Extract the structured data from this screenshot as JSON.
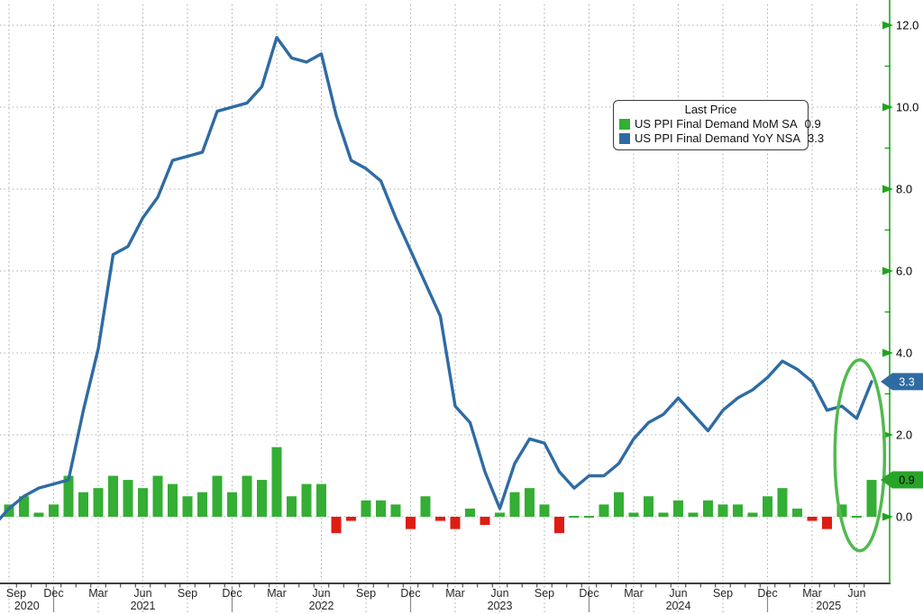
{
  "chart_data": {
    "type": "combo",
    "title": "US PPI Final Demand",
    "grid": true,
    "months": [
      "2020-09",
      "2020-10",
      "2020-11",
      "2020-12",
      "2021-01",
      "2021-02",
      "2021-03",
      "2021-04",
      "2021-05",
      "2021-06",
      "2021-07",
      "2021-08",
      "2021-09",
      "2021-10",
      "2021-11",
      "2021-12",
      "2022-01",
      "2022-02",
      "2022-03",
      "2022-04",
      "2022-05",
      "2022-06",
      "2022-07",
      "2022-08",
      "2022-09",
      "2022-10",
      "2022-11",
      "2022-12",
      "2023-01",
      "2023-02",
      "2023-03",
      "2023-04",
      "2023-05",
      "2023-06",
      "2023-07",
      "2023-08",
      "2023-09",
      "2023-10",
      "2023-11",
      "2023-12",
      "2024-01",
      "2024-02",
      "2024-03",
      "2024-04",
      "2024-05",
      "2024-06",
      "2024-07",
      "2024-08",
      "2024-09",
      "2024-10",
      "2024-11",
      "2024-12",
      "2025-01",
      "2025-02",
      "2025-03",
      "2025-04",
      "2025-05",
      "2025-06",
      "2025-07"
    ],
    "series": [
      {
        "name": "US PPI Final Demand MoM SA",
        "type": "bar",
        "last_value": 0.9,
        "color_positive": "#34ae34",
        "color_negative": "#e01c12",
        "values": [
          0.3,
          0.5,
          0.1,
          0.3,
          1.0,
          0.6,
          0.7,
          1.0,
          0.9,
          0.7,
          1.0,
          0.8,
          0.5,
          0.6,
          1.0,
          0.6,
          1.0,
          0.9,
          1.7,
          0.5,
          0.8,
          0.8,
          -0.4,
          -0.1,
          0.4,
          0.4,
          0.3,
          -0.3,
          0.5,
          -0.1,
          -0.3,
          0.2,
          -0.2,
          0.1,
          0.6,
          0.7,
          0.3,
          -0.4,
          0.0,
          0.0,
          0.3,
          0.6,
          0.1,
          0.5,
          0.1,
          0.4,
          0.1,
          0.4,
          0.3,
          0.3,
          0.1,
          0.5,
          0.7,
          0.2,
          -0.1,
          -0.3,
          0.3,
          0.0,
          0.9
        ]
      },
      {
        "name": "US PPI Final Demand YoY NSA",
        "type": "line",
        "last_value": 3.3,
        "color": "#2f6ba3",
        "lead_in": {
          "month": "2020-08",
          "value": -0.2
        },
        "values": [
          0.2,
          0.5,
          0.7,
          0.8,
          0.9,
          2.6,
          4.1,
          6.4,
          6.6,
          7.3,
          7.8,
          8.7,
          8.8,
          8.9,
          9.9,
          10.0,
          10.1,
          10.5,
          11.7,
          11.2,
          11.1,
          11.3,
          9.8,
          8.7,
          8.5,
          8.2,
          7.3,
          6.5,
          5.7,
          4.9,
          2.7,
          2.3,
          1.1,
          0.2,
          1.3,
          1.9,
          1.8,
          1.1,
          0.7,
          1.0,
          1.0,
          1.3,
          1.9,
          2.3,
          2.5,
          2.9,
          2.5,
          2.1,
          2.6,
          2.9,
          3.1,
          3.4,
          3.8,
          3.6,
          3.3,
          2.6,
          2.7,
          2.4,
          3.3
        ]
      }
    ],
    "y_axis": {
      "side": "right",
      "ylim": [
        -1.3,
        12.6
      ],
      "major_ticks": [
        0,
        2,
        4,
        6,
        8,
        10,
        12
      ],
      "major_tick_labels": [
        "0.0",
        "2.0",
        "4.0",
        "6.0",
        "8.0",
        "10.0",
        "12.0"
      ],
      "minor_ticks": [
        1,
        3,
        5,
        7,
        9,
        11
      ],
      "axis_color": "#1fa51f",
      "label_color": "#000000"
    },
    "x_axis": {
      "quarter_labels": [
        "Sep",
        "Dec",
        "Mar",
        "Jun",
        "Sep",
        "Dec",
        "Mar",
        "Jun",
        "Sep",
        "Dec",
        "Mar",
        "Jun",
        "Sep",
        "Dec",
        "Mar",
        "Jun",
        "Sep",
        "Dec",
        "Mar",
        "Jun"
      ],
      "year_labels": [
        "2020",
        "2021",
        "2022",
        "2023",
        "2024",
        "2025"
      ],
      "label_color": "#262626"
    },
    "legend": {
      "title": "Last Price",
      "items": [
        {
          "label": "US PPI Final Demand MoM SA",
          "value": "0.9",
          "swatch": "#34ae34"
        },
        {
          "label": "US PPI Final Demand YoY NSA",
          "value": "3.3",
          "swatch": "#2f6ba3"
        }
      ]
    },
    "badges": [
      {
        "text": "3.3",
        "value": 3.3,
        "bg": "#2f6ba3",
        "fg": "#ffffff"
      },
      {
        "text": "0.9",
        "value": 0.9,
        "bg": "#28a428",
        "fg": "#000000"
      }
    ],
    "annotation": {
      "type": "ellipse",
      "cx_month_index": 57.2,
      "cy_value": 1.5,
      "rx_months": 1.67,
      "ry_units": 2.33,
      "color": "#52b94e"
    },
    "gridline_color": "#a8a8a8"
  }
}
